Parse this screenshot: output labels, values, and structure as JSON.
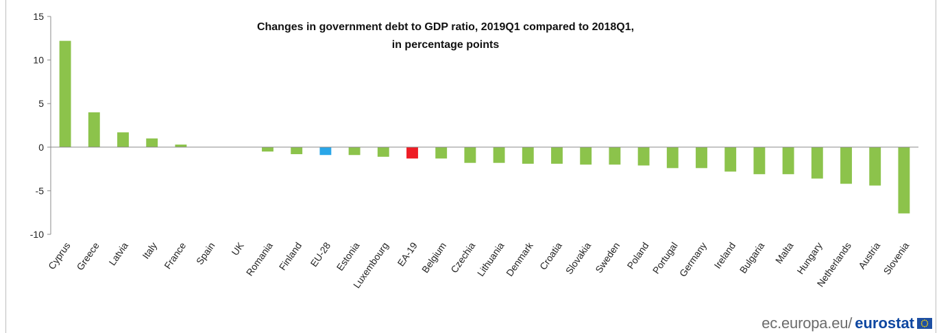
{
  "chart_data": {
    "type": "bar",
    "title_lines": [
      "Changes in government debt to GDP ratio, 2019Q1 compared to 2018Q1,",
      "in percentage points"
    ],
    "categories": [
      "Cyprus",
      "Greece",
      "Latvia",
      "Italy",
      "France",
      "Spain",
      "UK",
      "Romania",
      "Finland",
      "EU-28",
      "Estonia",
      "Luxembourg",
      "EA-19",
      "Belgium",
      "Czechia",
      "Lithuania",
      "Denmark",
      "Croatia",
      "Slovakia",
      "Sweden",
      "Poland",
      "Portugal",
      "Germany",
      "Ireland",
      "Bulgaria",
      "Malta",
      "Hungary",
      "Netherlands",
      "Austria",
      "Slovenia"
    ],
    "values": [
      12.2,
      4.0,
      1.7,
      1.0,
      0.3,
      0.0,
      0.0,
      -0.5,
      -0.8,
      -0.9,
      -0.9,
      -1.1,
      -1.3,
      -1.3,
      -1.8,
      -1.8,
      -1.9,
      -1.9,
      -2.0,
      -2.0,
      -2.1,
      -2.4,
      -2.4,
      -2.8,
      -3.1,
      -3.1,
      -3.6,
      -4.2,
      -4.4,
      -7.6
    ],
    "ylim": [
      -10,
      15
    ],
    "yticks": [
      -10,
      -5,
      0,
      5,
      10,
      15
    ],
    "grid": false,
    "colors": {
      "default": "#8cc34b",
      "EU-28": "#2aa6e8",
      "EA-19": "#ee1c25"
    }
  },
  "source": {
    "domain": "ec.europa.eu/",
    "brand": "eurostat"
  }
}
